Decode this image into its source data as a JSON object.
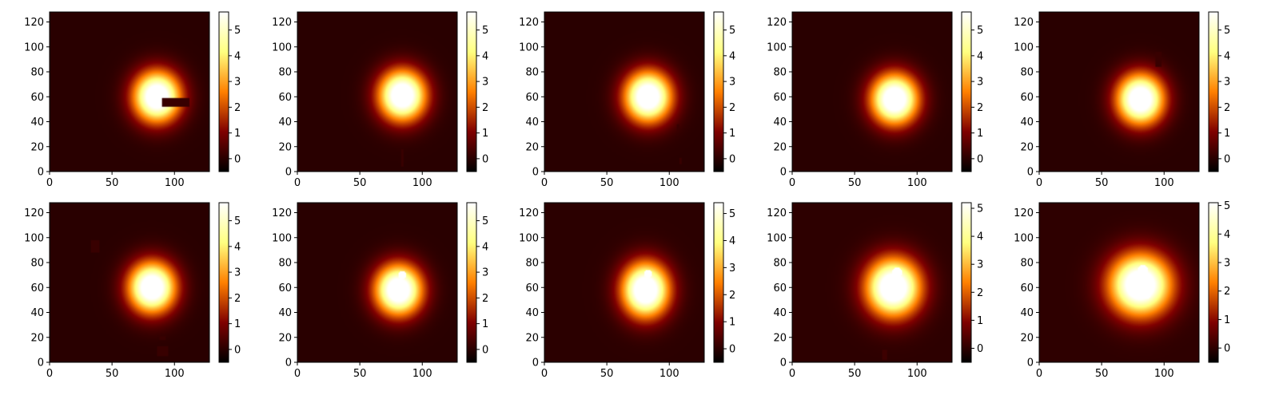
{
  "chart_data": {
    "type": "heatmap",
    "colormap": "afmhot",
    "grid": false,
    "image_extent": {
      "x": [
        0,
        128
      ],
      "y": [
        0,
        128
      ]
    },
    "xticks": [
      0,
      50,
      100
    ],
    "yticks": [
      0,
      20,
      40,
      60,
      80,
      100,
      120
    ],
    "panels": [
      {
        "row": 1,
        "col": 1,
        "peak_center": [
          86,
          60
        ],
        "sigma": [
          13,
          14
        ],
        "peak_value": 5.6,
        "masks": [
          {
            "x": [
              90,
              112
            ],
            "y": [
              52,
              59
            ]
          }
        ],
        "bright_spots": [],
        "colorbar": {
          "range": [
            -0.5,
            5.7
          ],
          "ticks": [
            0,
            1,
            2,
            3,
            4,
            5
          ]
        }
      },
      {
        "row": 1,
        "col": 2,
        "peak_center": [
          84,
          61
        ],
        "sigma": [
          13,
          14
        ],
        "peak_value": 5.6,
        "masks": [
          {
            "x": [
              83,
              85
            ],
            "y": [
              4,
              18
            ]
          }
        ],
        "bright_spots": [],
        "colorbar": {
          "range": [
            -0.5,
            5.7
          ],
          "ticks": [
            0,
            1,
            2,
            3,
            4,
            5
          ]
        }
      },
      {
        "row": 1,
        "col": 3,
        "peak_center": [
          83,
          60
        ],
        "sigma": [
          13,
          14
        ],
        "peak_value": 5.6,
        "masks": [
          {
            "x": [
              106,
              108
            ],
            "y": [
              32,
              38
            ]
          },
          {
            "x": [
              108,
              110
            ],
            "y": [
              6,
              11
            ]
          }
        ],
        "bright_spots": [],
        "colorbar": {
          "range": [
            -0.5,
            5.7
          ],
          "ticks": [
            0,
            1,
            2,
            3,
            4,
            5
          ]
        }
      },
      {
        "row": 1,
        "col": 4,
        "peak_center": [
          82,
          58
        ],
        "sigma": [
          13,
          14
        ],
        "peak_value": 5.6,
        "masks": [],
        "bright_spots": [],
        "colorbar": {
          "range": [
            -0.5,
            5.7
          ],
          "ticks": [
            0,
            1,
            2,
            3,
            4,
            5
          ]
        }
      },
      {
        "row": 1,
        "col": 5,
        "peak_center": [
          81,
          58
        ],
        "sigma": [
          13,
          14
        ],
        "peak_value": 5.6,
        "masks": [
          {
            "x": [
              93,
              98
            ],
            "y": [
              84,
              96
            ]
          }
        ],
        "bright_spots": [],
        "colorbar": {
          "range": [
            -0.5,
            5.7
          ],
          "ticks": [
            0,
            1,
            2,
            3,
            4,
            5
          ]
        }
      },
      {
        "row": 2,
        "col": 1,
        "peak_center": [
          82,
          60
        ],
        "sigma": [
          13,
          14
        ],
        "peak_value": 5.6,
        "masks": [
          {
            "x": [
              33,
              40
            ],
            "y": [
              88,
              98
            ]
          },
          {
            "x": [
              86,
              95
            ],
            "y": [
              5,
              13
            ]
          },
          {
            "x": [
              88,
              93
            ],
            "y": [
              18,
              21
            ]
          }
        ],
        "bright_spots": [],
        "colorbar": {
          "range": [
            -0.5,
            5.7
          ],
          "ticks": [
            0,
            1,
            2,
            3,
            4,
            5
          ]
        }
      },
      {
        "row": 2,
        "col": 2,
        "peak_center": [
          81,
          58
        ],
        "sigma": [
          13,
          14
        ],
        "peak_value": 5.6,
        "masks": [],
        "bright_spots": [
          {
            "center": [
              84,
              70
            ],
            "radius": 3
          }
        ],
        "colorbar": {
          "range": [
            -0.5,
            5.7
          ],
          "ticks": [
            0,
            1,
            2,
            3,
            4,
            5
          ]
        }
      },
      {
        "row": 2,
        "col": 3,
        "peak_center": [
          81,
          58
        ],
        "sigma": [
          13,
          15
        ],
        "peak_value": 5.4,
        "masks": [],
        "bright_spots": [
          {
            "center": [
              83,
              71
            ],
            "radius": 3
          }
        ],
        "colorbar": {
          "range": [
            -0.5,
            5.4
          ],
          "ticks": [
            0,
            1,
            2,
            3,
            4,
            5
          ]
        }
      },
      {
        "row": 2,
        "col": 4,
        "peak_center": [
          81,
          60
        ],
        "sigma": [
          15,
          16
        ],
        "peak_value": 5.2,
        "masks": [
          {
            "x": [
              72,
              76
            ],
            "y": [
              2,
              10
            ]
          }
        ],
        "bright_spots": [
          {
            "center": [
              84,
              72
            ],
            "radius": 4
          },
          {
            "center": [
              86,
              54
            ],
            "radius": 3
          }
        ],
        "colorbar": {
          "range": [
            -0.5,
            5.2
          ],
          "ticks": [
            0,
            1,
            2,
            3,
            4,
            5
          ]
        }
      },
      {
        "row": 2,
        "col": 5,
        "peak_center": [
          81,
          62
        ],
        "sigma": [
          17,
          17
        ],
        "peak_value": 5.1,
        "masks": [],
        "bright_spots": [
          {
            "center": [
              83,
              74
            ],
            "radius": 4
          },
          {
            "center": [
              86,
              54
            ],
            "radius": 3
          }
        ],
        "colorbar": {
          "range": [
            -0.5,
            5.1
          ],
          "ticks": [
            0,
            1,
            2,
            3,
            4,
            5
          ]
        }
      }
    ]
  }
}
